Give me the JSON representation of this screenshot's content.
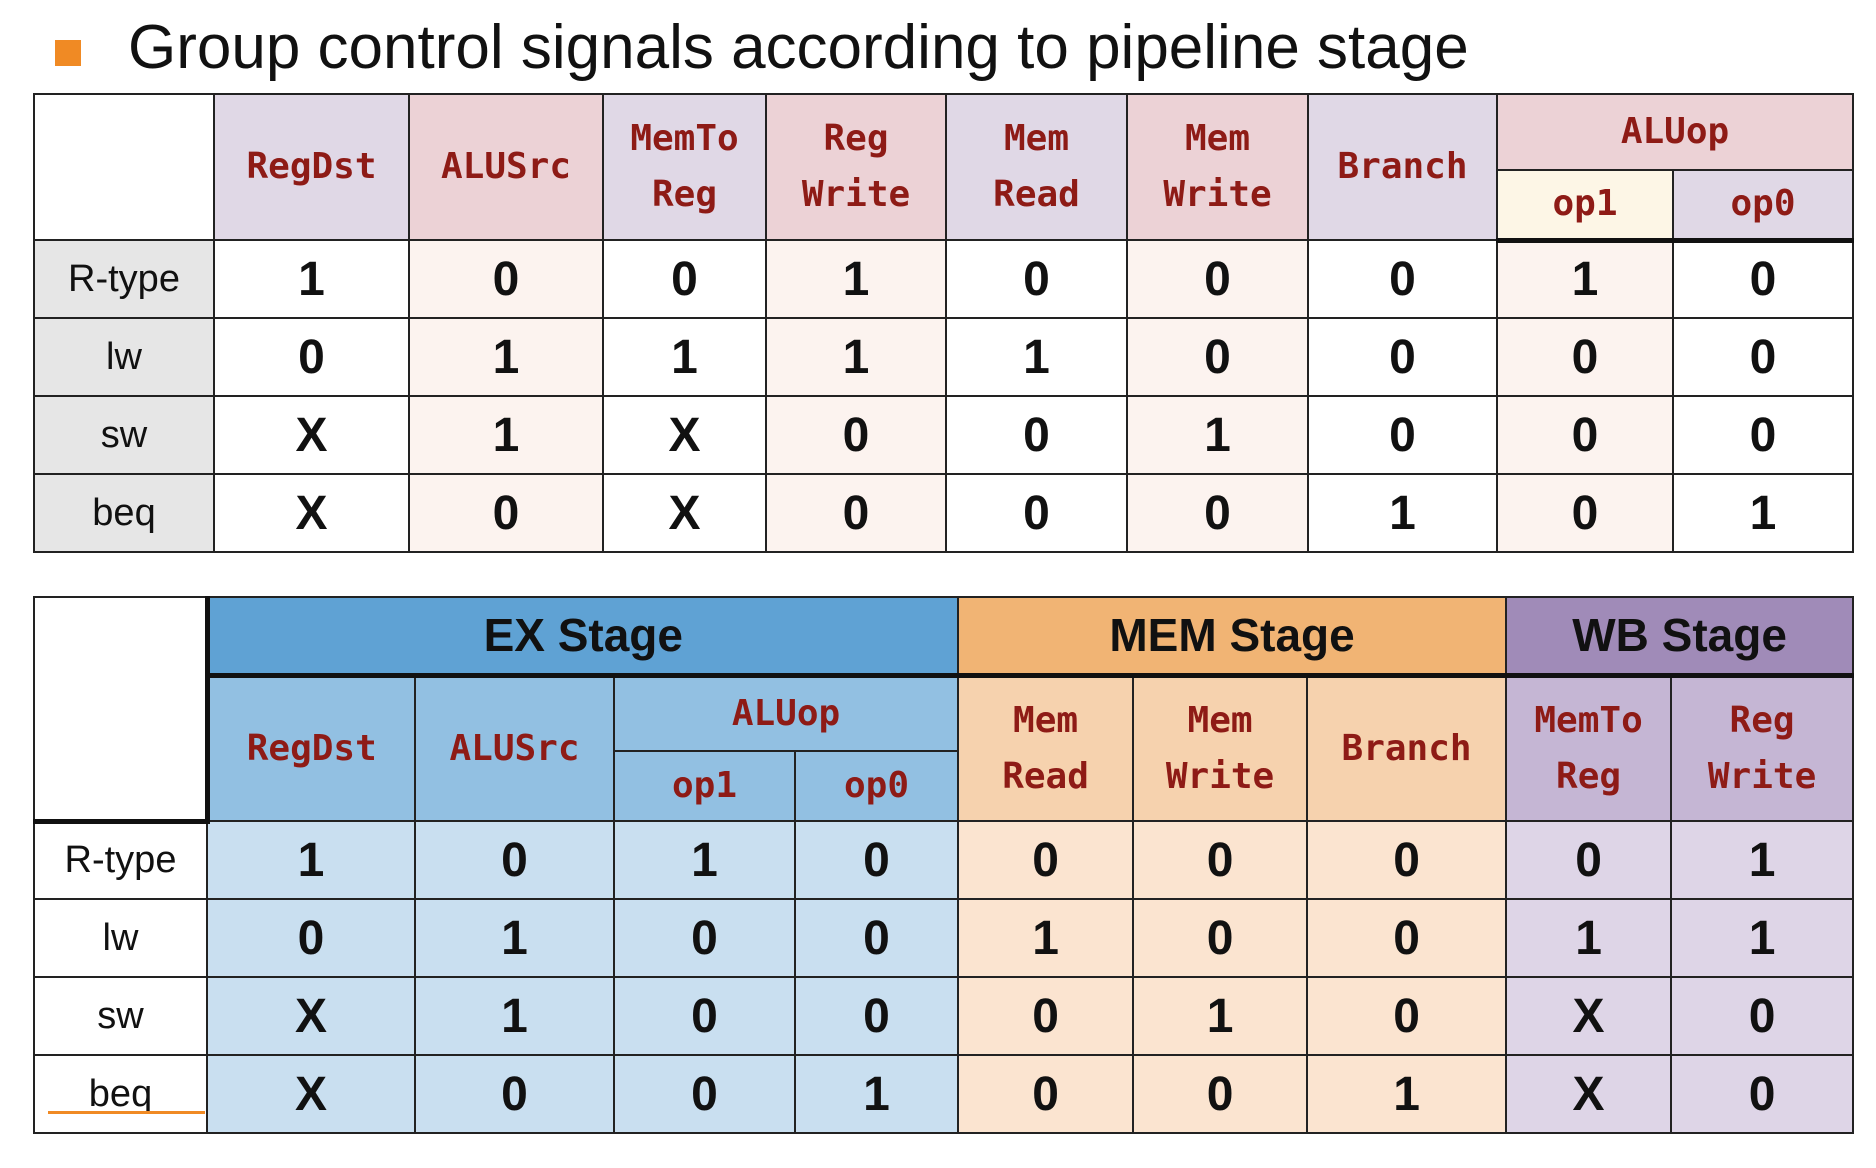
{
  "title": "Group control signals according to pipeline stage",
  "table1": {
    "headers": {
      "regdst": "RegDst",
      "alusrc": "ALUSrc",
      "memtoreg_1": "MemTo",
      "memtoreg_2": "Reg",
      "regwrite_1": "Reg",
      "regwrite_2": "Write",
      "memread_1": "Mem",
      "memread_2": "Read",
      "memwrite_1": "Mem",
      "memwrite_2": "Write",
      "branch": "Branch",
      "aluop": "ALUop",
      "op1": "op1",
      "op0": "op0"
    },
    "rows": [
      {
        "label": "R-type",
        "values": [
          "1",
          "0",
          "0",
          "1",
          "0",
          "0",
          "0",
          "1",
          "0"
        ]
      },
      {
        "label": "lw",
        "values": [
          "0",
          "1",
          "1",
          "1",
          "1",
          "0",
          "0",
          "0",
          "0"
        ]
      },
      {
        "label": "sw",
        "values": [
          "X",
          "1",
          "X",
          "0",
          "0",
          "1",
          "0",
          "0",
          "0"
        ]
      },
      {
        "label": "beq",
        "values": [
          "X",
          "0",
          "X",
          "0",
          "0",
          "0",
          "1",
          "0",
          "1"
        ]
      }
    ]
  },
  "table2": {
    "stages": {
      "ex": "EX Stage",
      "mem": "MEM Stage",
      "wb": "WB Stage"
    },
    "stage_colors": {
      "ex": "#5fa2d4",
      "mem": "#f1b474",
      "wb": "#a08bb8"
    },
    "headers": {
      "regdst": "RegDst",
      "alusrc": "ALUSrc",
      "aluop": "ALUop",
      "op1": "op1",
      "op0": "op0",
      "memread_1": "Mem",
      "memread_2": "Read",
      "memwrite_1": "Mem",
      "memwrite_2": "Write",
      "branch": "Branch",
      "memtoreg_1": "MemTo",
      "memtoreg_2": "Reg",
      "regwrite_1": "Reg",
      "regwrite_2": "Write"
    },
    "rows": [
      {
        "label": "R-type",
        "values": [
          "1",
          "0",
          "1",
          "0",
          "0",
          "0",
          "0",
          "0",
          "1"
        ]
      },
      {
        "label": "lw",
        "values": [
          "0",
          "1",
          "0",
          "0",
          "1",
          "0",
          "0",
          "1",
          "1"
        ]
      },
      {
        "label": "sw",
        "values": [
          "X",
          "1",
          "0",
          "0",
          "0",
          "1",
          "0",
          "X",
          "0"
        ]
      },
      {
        "label": "beq",
        "values": [
          "X",
          "0",
          "0",
          "1",
          "0",
          "0",
          "1",
          "X",
          "0"
        ]
      }
    ]
  }
}
